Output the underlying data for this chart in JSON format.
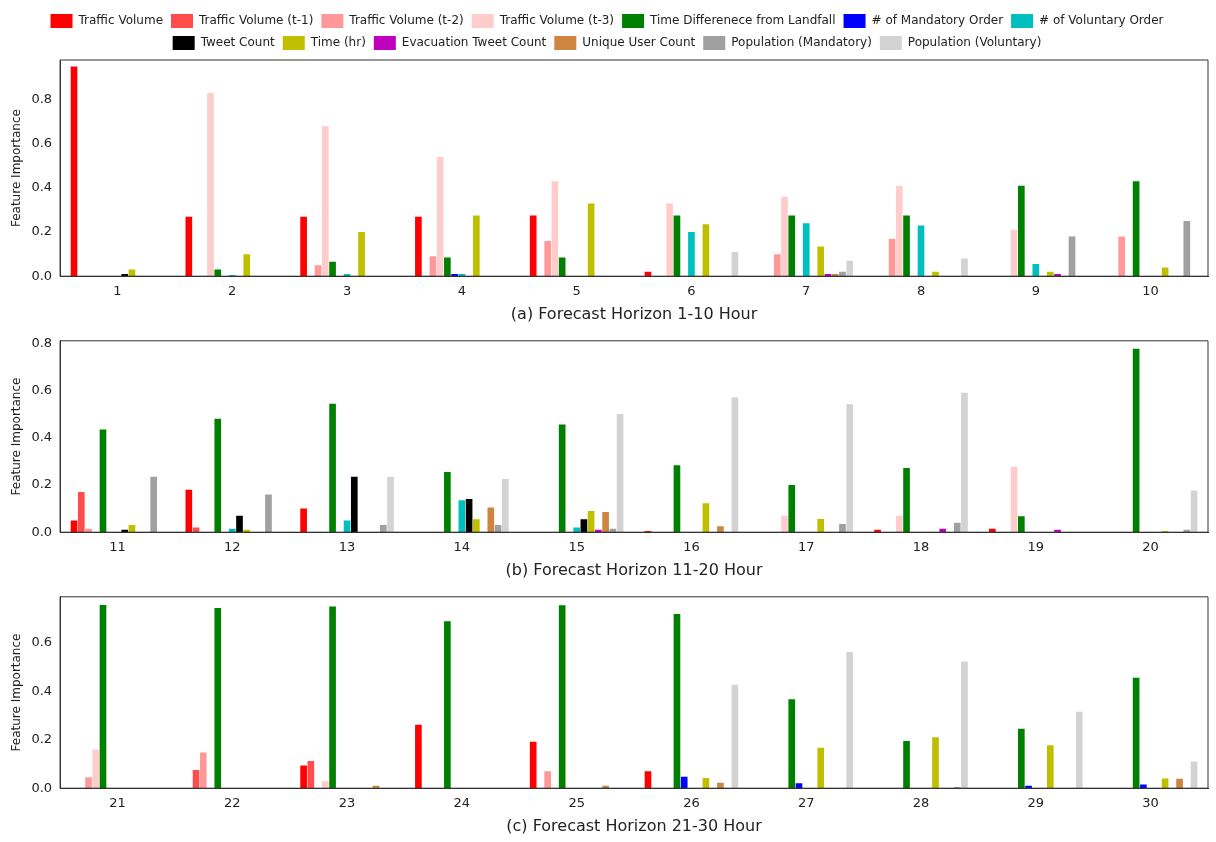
{
  "chart_data": [
    {
      "type": "bar",
      "xlabel": "(a) Forecast Horizon 1-10 Hour",
      "ylabel": "Feature Importance",
      "legend": "top",
      "grid": false,
      "categories": [
        "1",
        "2",
        "3",
        "4",
        "5",
        "6",
        "7",
        "8",
        "9",
        "10"
      ],
      "ylim": [
        0,
        0.98
      ],
      "yticks": [
        {
          "value": 0,
          "label": "0.0"
        },
        {
          "value": 0.2,
          "label": "0.2"
        },
        {
          "value": 0.4,
          "label": "0.4"
        },
        {
          "value": 0.6,
          "label": "0.6"
        },
        {
          "value": 0.8,
          "label": "0.8"
        }
      ],
      "series": [
        {
          "name": "Traffic Volume",
          "color": "#ff0000",
          "values": [
            0.95,
            0.27,
            0.27,
            0.27,
            0.275,
            0.02,
            0,
            0,
            0,
            0
          ]
        },
        {
          "name": "Traffic Volume (t-1)",
          "color": "#ff4c4c",
          "values": [
            0,
            0,
            0,
            0,
            0,
            0,
            0,
            0,
            0,
            0
          ]
        },
        {
          "name": "Traffic Volume (t-2)",
          "color": "#ff9999",
          "values": [
            0,
            0,
            0.05,
            0.09,
            0.16,
            0,
            0.1,
            0.17,
            0,
            0.18
          ]
        },
        {
          "name": "Traffic Volume (t-3)",
          "color": "#ffcccc",
          "values": [
            0,
            0.83,
            0.68,
            0.54,
            0.43,
            0.33,
            0.36,
            0.41,
            0.21,
            0
          ]
        },
        {
          "name": "Time Differenece from Landfall",
          "color": "#008000",
          "values": [
            0,
            0.03,
            0.065,
            0.085,
            0.085,
            0.275,
            0.275,
            0.275,
            0.41,
            0.43
          ]
        },
        {
          "name": "# of Mandatory Order",
          "color": "#0000ff",
          "values": [
            0,
            0,
            0,
            0.01,
            0,
            0,
            0,
            0,
            0,
            0
          ]
        },
        {
          "name": "# of Voluntary Order",
          "color": "#00bfbf",
          "values": [
            0,
            0.005,
            0.01,
            0.01,
            0,
            0.2,
            0.24,
            0.23,
            0.055,
            0
          ]
        },
        {
          "name": "Tweet Count",
          "color": "#000000",
          "values": [
            0.01,
            0,
            0,
            0,
            0,
            0,
            0,
            0,
            0,
            0
          ]
        },
        {
          "name": "Time (hr)",
          "color": "#bfbf00",
          "values": [
            0.03,
            0.1,
            0.2,
            0.275,
            0.33,
            0.235,
            0.135,
            0.02,
            0.02,
            0.04
          ]
        },
        {
          "name": "Evacuation Tweet Count",
          "color": "#bf00bf",
          "values": [
            0,
            0,
            0,
            0,
            0,
            0,
            0.01,
            0,
            0.01,
            0
          ]
        },
        {
          "name": "Unique User Count",
          "color": "#cd853f",
          "values": [
            0,
            0,
            0,
            0,
            0,
            0,
            0.01,
            0,
            0,
            0
          ]
        },
        {
          "name": "Population (Mandatory)",
          "color": "#a0a0a0",
          "values": [
            0,
            0,
            0,
            0,
            0,
            0,
            0.02,
            0,
            0.18,
            0.25
          ]
        },
        {
          "name": "Population (Voluntary)",
          "color": "#d3d3d3",
          "values": [
            0,
            0,
            0,
            0,
            0,
            0.11,
            0.07,
            0.08,
            0,
            0
          ]
        }
      ]
    },
    {
      "type": "bar",
      "xlabel": "(b) Forecast Horizon 11-20 Hour",
      "ylabel": "Feature Importance",
      "grid": false,
      "categories": [
        "11",
        "12",
        "13",
        "14",
        "15",
        "16",
        "17",
        "18",
        "19",
        "20"
      ],
      "ylim": [
        0,
        0.81
      ],
      "yticks": [
        {
          "value": 0,
          "label": "0.0"
        },
        {
          "value": 0.2,
          "label": "0.2"
        },
        {
          "value": 0.4,
          "label": "0.4"
        },
        {
          "value": 0.6,
          "label": "0.6"
        },
        {
          "value": 0.8,
          "label": "0.8"
        }
      ],
      "series": [
        {
          "color": "#ff0000",
          "values": [
            0.05,
            0.18,
            0.1,
            0,
            0,
            0.005,
            0,
            0.01,
            0.015,
            0
          ]
        },
        {
          "color": "#ff4c4c",
          "values": [
            0.17,
            0.02,
            0,
            0,
            0,
            0,
            0,
            0,
            0,
            0
          ]
        },
        {
          "color": "#ff9999",
          "values": [
            0.015,
            0,
            0,
            0,
            0,
            0,
            0,
            0,
            0,
            0
          ]
        },
        {
          "color": "#ffcccc",
          "values": [
            0,
            0,
            0,
            0,
            0,
            0,
            0.07,
            0.07,
            0.277,
            0
          ]
        },
        {
          "color": "#008000",
          "values": [
            0.435,
            0.48,
            0.544,
            0.255,
            0.456,
            0.283,
            0.2,
            0.272,
            0.067,
            0.776
          ]
        },
        {
          "color": "#0000ff",
          "values": [
            0,
            0,
            0,
            0,
            0,
            0,
            0,
            0,
            0,
            0
          ]
        },
        {
          "color": "#00bfbf",
          "values": [
            0,
            0.015,
            0.05,
            0.135,
            0.02,
            0,
            0,
            0,
            0,
            0
          ]
        },
        {
          "color": "#000000",
          "values": [
            0.01,
            0.07,
            0.235,
            0.14,
            0.055,
            0,
            0,
            0,
            0,
            0
          ]
        },
        {
          "color": "#bfbf00",
          "values": [
            0.03,
            0.01,
            0,
            0.055,
            0.09,
            0.123,
            0.056,
            0,
            0,
            0.005
          ]
        },
        {
          "color": "#bf00bf",
          "values": [
            0,
            0,
            0,
            0,
            0.01,
            0,
            0,
            0.015,
            0.01,
            0
          ]
        },
        {
          "color": "#cd853f",
          "values": [
            0,
            0,
            0,
            0.105,
            0.085,
            0.025,
            0,
            0,
            0,
            0
          ]
        },
        {
          "color": "#a0a0a0",
          "values": [
            0.235,
            0.16,
            0.03,
            0.03,
            0.015,
            0,
            0.035,
            0.04,
            0,
            0.01
          ]
        },
        {
          "color": "#d3d3d3",
          "values": [
            0,
            0,
            0.235,
            0.225,
            0.5,
            0.571,
            0.542,
            0.59,
            0,
            0.176
          ]
        }
      ]
    },
    {
      "type": "bar",
      "xlabel": "(c) Forecast Horizon 21-30 Hour",
      "ylabel": "Feature Importance",
      "grid": false,
      "categories": [
        "21",
        "22",
        "23",
        "24",
        "25",
        "26",
        "27",
        "28",
        "29",
        "30"
      ],
      "ylim": [
        0,
        0.79
      ],
      "yticks": [
        {
          "value": 0,
          "label": "0.0"
        },
        {
          "value": 0.2,
          "label": "0.2"
        },
        {
          "value": 0.4,
          "label": "0.4"
        },
        {
          "value": 0.6,
          "label": "0.6"
        }
      ],
      "series": [
        {
          "color": "#ff0000",
          "values": [
            0,
            0,
            0.094,
            0.262,
            0.192,
            0.07,
            0,
            0,
            0,
            0
          ]
        },
        {
          "color": "#ff4c4c",
          "values": [
            0,
            0.075,
            0.112,
            0,
            0,
            0,
            0,
            0,
            0,
            0
          ]
        },
        {
          "color": "#ff9999",
          "values": [
            0.045,
            0.147,
            0,
            0,
            0.07,
            0,
            0,
            0,
            0,
            0
          ]
        },
        {
          "color": "#ffcccc",
          "values": [
            0.16,
            0,
            0.03,
            0,
            0,
            0,
            0,
            0,
            0,
            0
          ]
        },
        {
          "color": "#008000",
          "values": [
            0.756,
            0.744,
            0.75,
            0.689,
            0.755,
            0.719,
            0.367,
            0.195,
            0.245,
            0.456
          ]
        },
        {
          "color": "#0000ff",
          "values": [
            0,
            0,
            0,
            0,
            0,
            0.047,
            0.02,
            0,
            0.01,
            0.015
          ]
        },
        {
          "color": "#00bfbf",
          "values": [
            0,
            0,
            0,
            0,
            0,
            0,
            0,
            0,
            0,
            0
          ]
        },
        {
          "color": "#000000",
          "values": [
            0,
            0,
            0,
            0,
            0,
            0,
            0,
            0,
            0,
            0
          ]
        },
        {
          "color": "#bfbf00",
          "values": [
            0,
            0,
            0,
            0,
            0,
            0.042,
            0.167,
            0.21,
            0.177,
            0.04
          ]
        },
        {
          "color": "#bf00bf",
          "values": [
            0,
            0,
            0,
            0,
            0,
            0,
            0,
            0,
            0,
            0
          ]
        },
        {
          "color": "#cd853f",
          "values": [
            0,
            0,
            0.01,
            0,
            0.01,
            0.023,
            0,
            0,
            0,
            0.039
          ]
        },
        {
          "color": "#a0a0a0",
          "values": [
            0,
            0,
            0,
            0,
            0,
            0,
            0,
            0.005,
            0,
            0
          ]
        },
        {
          "color": "#d3d3d3",
          "values": [
            0,
            0,
            0,
            0,
            0,
            0.427,
            0.562,
            0.523,
            0.316,
            0.11
          ]
        }
      ]
    }
  ]
}
